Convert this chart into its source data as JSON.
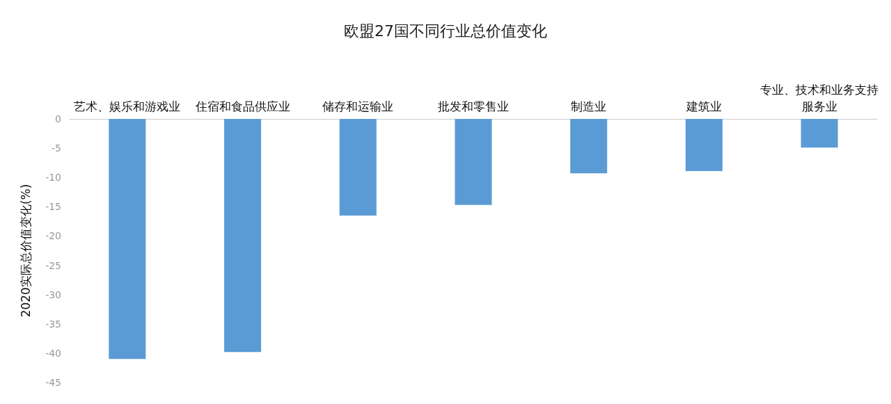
{
  "chart_data": {
    "type": "bar",
    "title": "欧盟27国不同行业总价值变化",
    "ylabel": "2020实际总价值变化(%)",
    "categories": [
      "艺术、娱乐和游戏业",
      "住宿和食品供应业",
      "储存和运输业",
      "批发和零售业",
      "制造业",
      "建筑业",
      "专业、技术和业务支持服务业"
    ],
    "values": [
      -41,
      -39.8,
      -16.5,
      -14.7,
      -9.3,
      -8.9,
      -4.9
    ],
    "color": "#5b9bd5",
    "ylim": [
      -45,
      0
    ],
    "yticks": [
      0,
      -5,
      -10,
      -15,
      -20,
      -25,
      -30,
      -35,
      -40,
      -45
    ],
    "grid": false
  }
}
